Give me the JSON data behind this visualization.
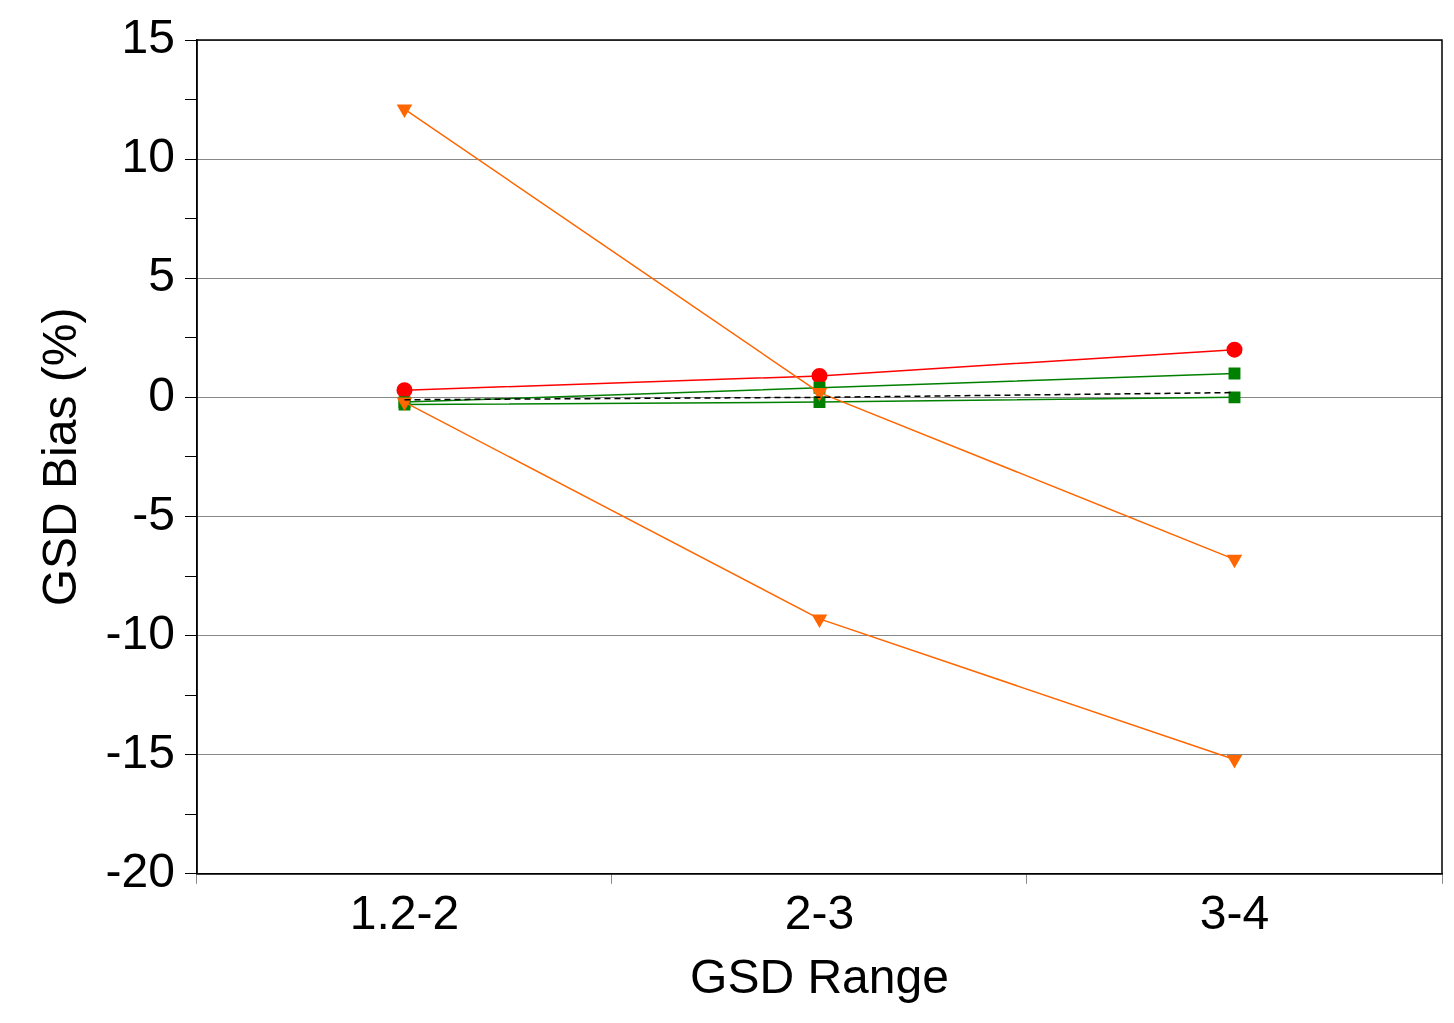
{
  "chart_data": {
    "type": "line",
    "xlabel": "GSD Range",
    "ylabel": "GSD Bias (%)",
    "categories": [
      "1.2-2",
      "2-3",
      "3-4"
    ],
    "series": [
      {
        "color": "#ff0000",
        "values": [
          0.3,
          0.9,
          2.0
        ],
        "marker": "circle"
      },
      {
        "color": "#008000",
        "values": [
          -0.2,
          0.4,
          1.0
        ],
        "marker": "square"
      },
      {
        "color": "#008000",
        "values": [
          -0.3,
          -0.2,
          0.0
        ],
        "marker": "square"
      },
      {
        "color": "#000000",
        "values": [
          -0.1,
          0.0,
          0.2
        ],
        "marker": "none",
        "line_style": "dashed"
      },
      {
        "color": "#ff6600",
        "values": [
          12.1,
          0.2,
          -6.8
        ],
        "marker": "triangle"
      },
      {
        "color": "#ff6600",
        "values": [
          -0.2,
          -9.3,
          -15.2
        ],
        "marker": "triangle"
      }
    ],
    "ylim": [
      -20,
      15
    ],
    "yticks": [
      -20,
      {
        "value": -17.5,
        "label": null
      },
      -15,
      {
        "value": -12.5,
        "label": null
      },
      -10,
      {
        "value": -7.5,
        "label": null
      },
      -5,
      {
        "value": -2.5,
        "label": null
      },
      0,
      {
        "value": 2.5,
        "label": null
      },
      5,
      {
        "value": 7.5,
        "label": null
      },
      10,
      {
        "value": 12.5,
        "label": null
      },
      15
    ],
    "grid": "y",
    "legend": false
  }
}
